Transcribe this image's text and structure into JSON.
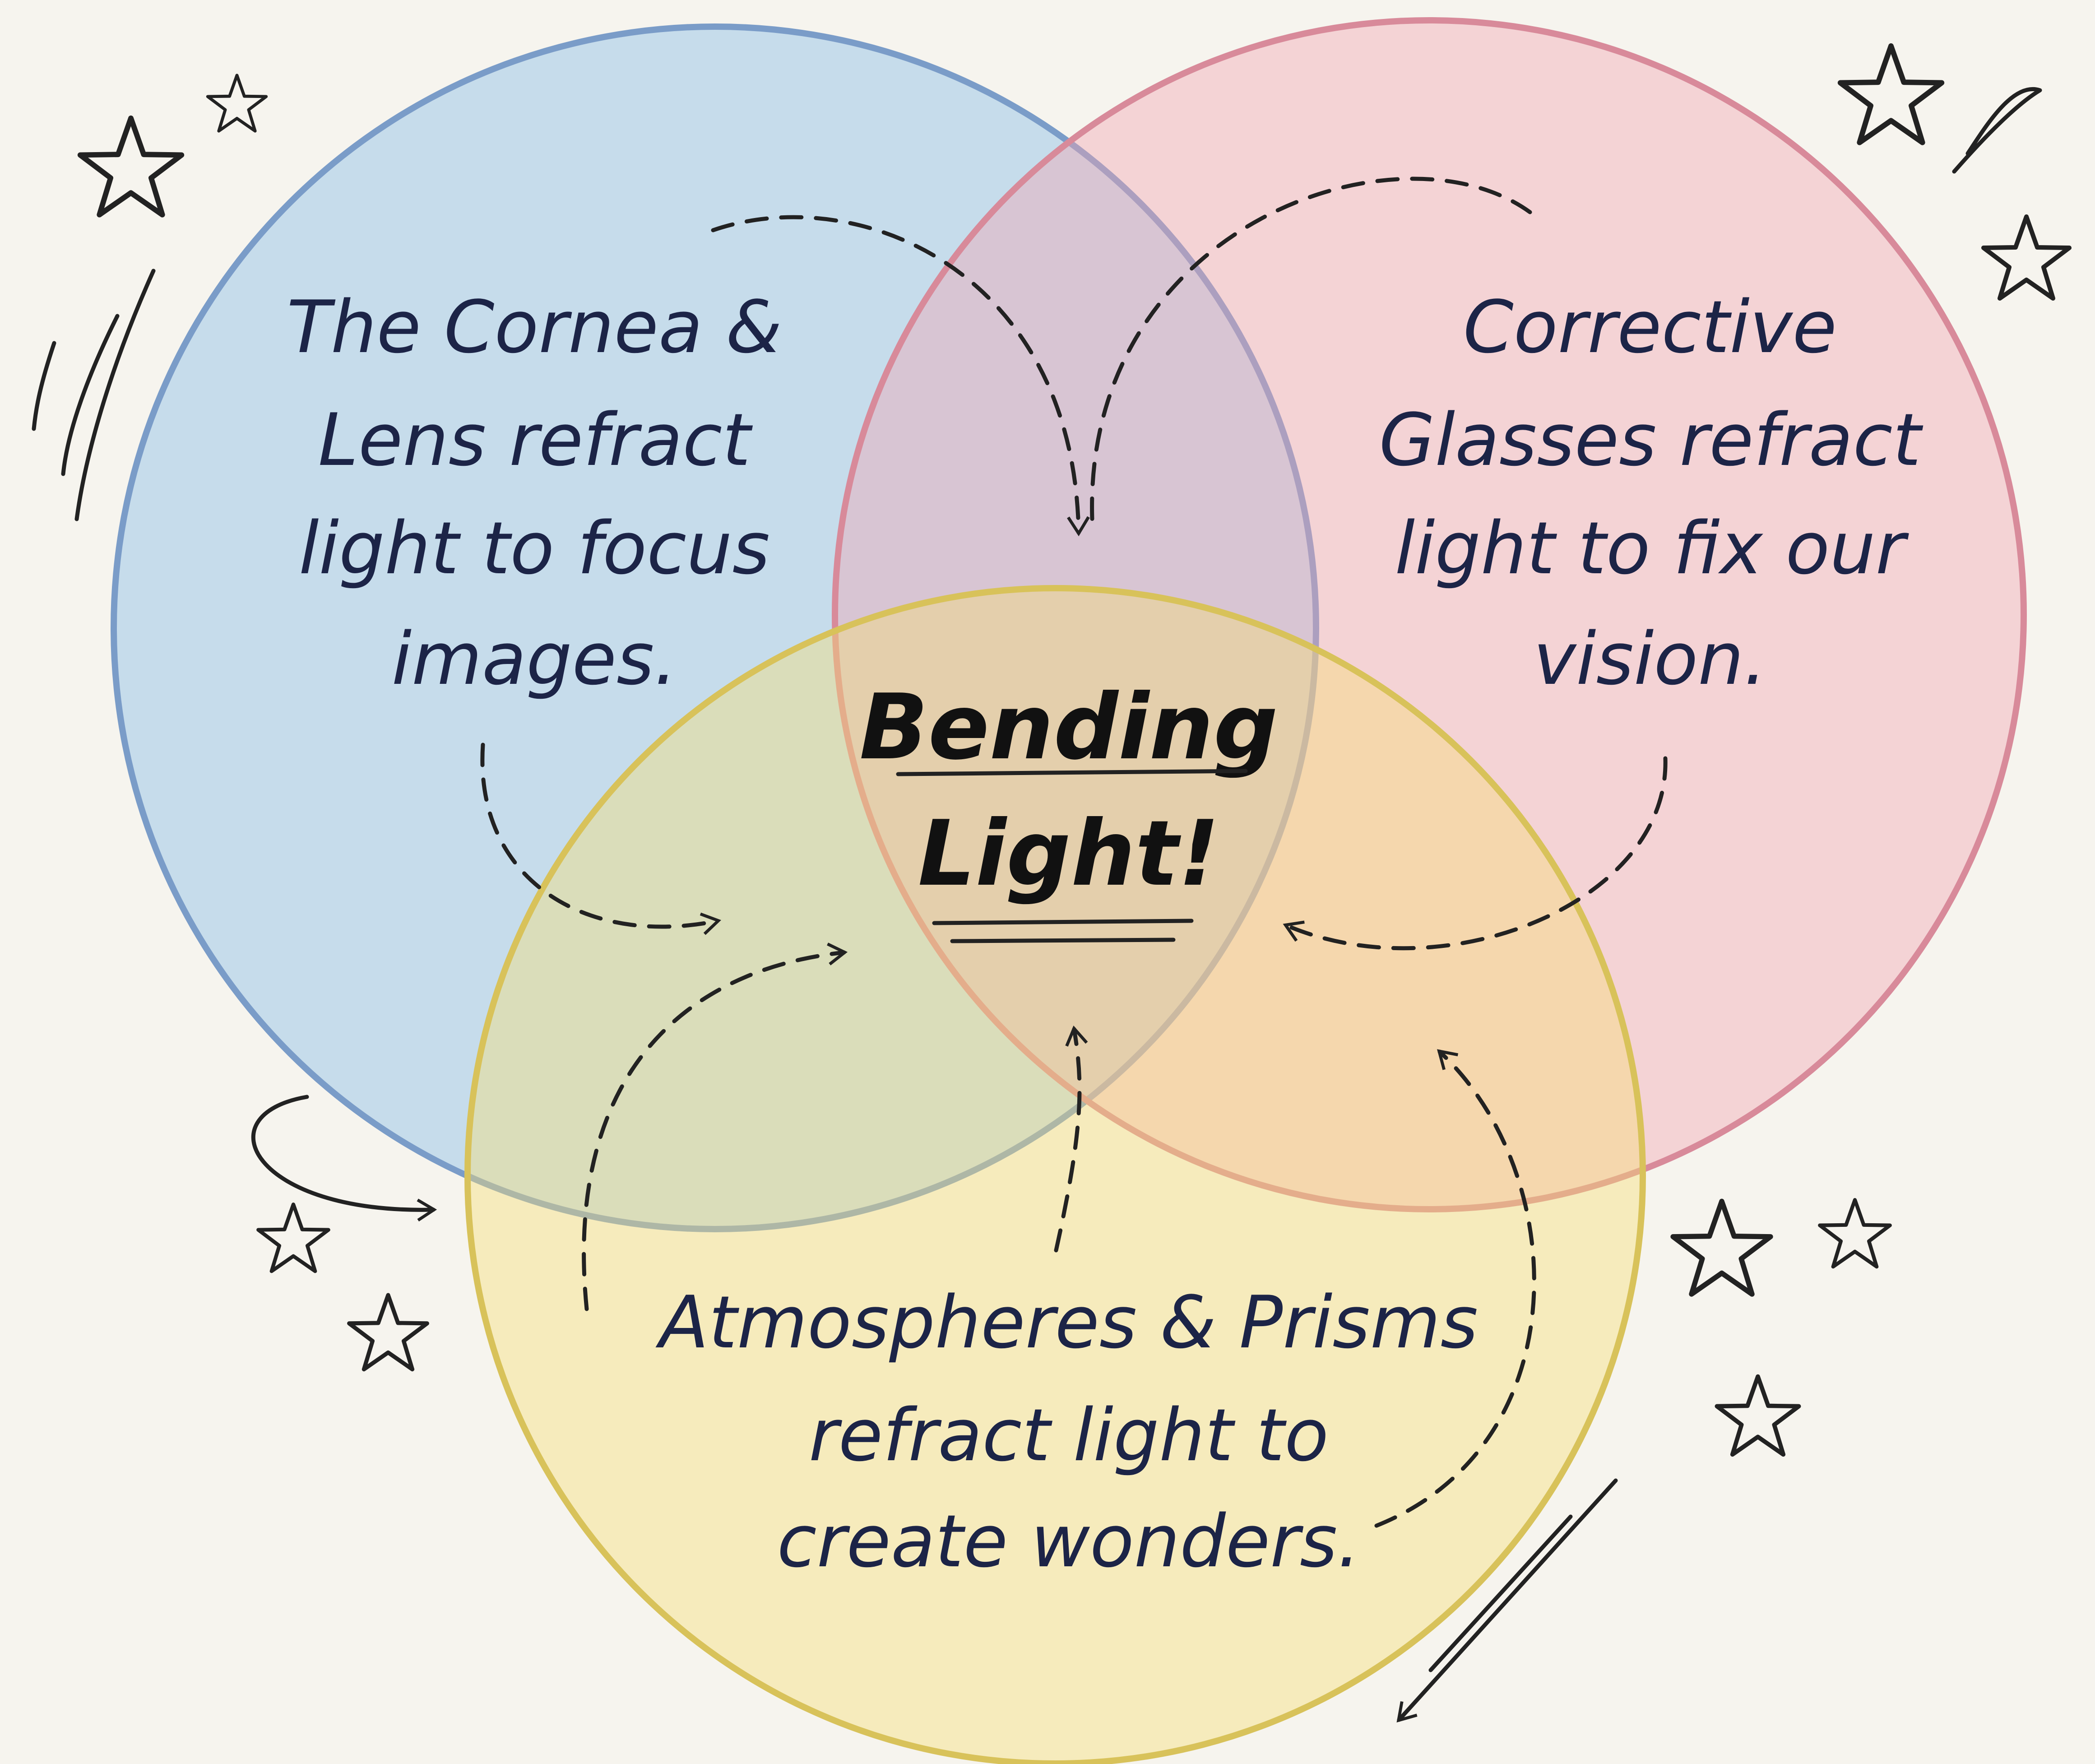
{
  "circles": [
    {
      "lines": [
        "The Cornea &",
        "Lens refract",
        "light to focus",
        "images."
      ]
    },
    {
      "lines": [
        "Corrective",
        "Glasses refract",
        "light to fix our",
        "vision."
      ]
    },
    {
      "lines": [
        "Atmospheres & Prisms",
        "refract light to",
        "create wonders."
      ]
    }
  ],
  "center": {
    "lines": [
      "Bending",
      "Light!"
    ]
  }
}
